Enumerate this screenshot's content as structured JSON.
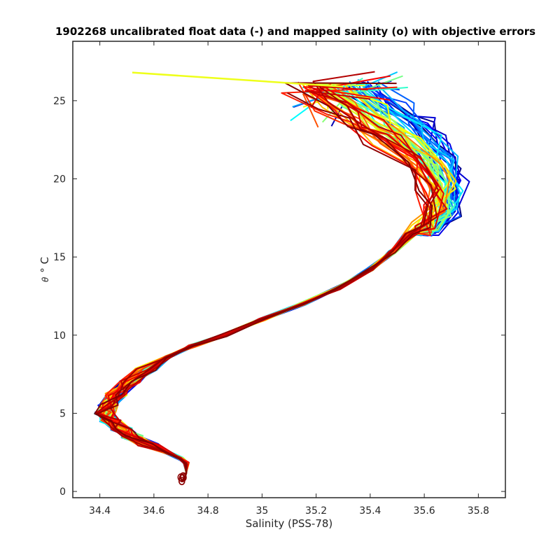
{
  "chart_data": {
    "type": "line",
    "title": "1902268 uncalibrated float data (-) and mapped salinity (o) with objective errors",
    "xlabel": "Salinity (PSS-78)",
    "ylabel_symbol": "θ",
    "ylabel_unit": "° C",
    "xlim": [
      34.3,
      35.9
    ],
    "ylim": [
      -0.4,
      28.8
    ],
    "x_ticks": [
      34.4,
      34.6,
      34.8,
      35,
      35.2,
      35.4,
      35.6,
      35.8
    ],
    "x_tick_labels": [
      "34.4",
      "34.6",
      "34.8",
      "35",
      "35.2",
      "35.4",
      "35.6",
      "35.8"
    ],
    "y_ticks": [
      0,
      5,
      10,
      15,
      20,
      25
    ],
    "y_tick_labels": [
      "0",
      "5",
      "10",
      "15",
      "20",
      "25"
    ],
    "grid": false,
    "colormap": [
      "#00007f",
      "#0000ff",
      "#007fff",
      "#00ffff",
      "#7fff7f",
      "#ffff00",
      "#ff7f00",
      "#ff0000",
      "#7f0000"
    ],
    "profile_count": 60,
    "deep_segment": [
      [
        34.71,
        0.7
      ],
      [
        34.72,
        1.2
      ],
      [
        34.72,
        1.8
      ],
      [
        34.7,
        2.1
      ],
      [
        34.65,
        2.5
      ],
      [
        34.58,
        3.0
      ],
      [
        34.52,
        3.5
      ],
      [
        34.48,
        4.0
      ],
      [
        34.44,
        4.5
      ],
      [
        34.42,
        5.0
      ],
      [
        34.43,
        5.5
      ],
      [
        34.46,
        6.2
      ],
      [
        34.51,
        7.0
      ],
      [
        34.57,
        7.8
      ],
      [
        34.65,
        8.6
      ],
      [
        34.74,
        9.3
      ],
      [
        34.86,
        10.0
      ],
      [
        35.0,
        11.0
      ],
      [
        35.15,
        12.0
      ],
      [
        35.28,
        13.0
      ],
      [
        35.4,
        14.2
      ],
      [
        35.48,
        15.3
      ],
      [
        35.55,
        16.5
      ]
    ],
    "upper_envelope": {
      "fresh_end": [
        [
          35.58,
          16.8
        ],
        [
          35.62,
          18.0
        ],
        [
          35.6,
          19.5
        ],
        [
          35.53,
          21.0
        ],
        [
          35.4,
          22.5
        ],
        [
          35.28,
          23.5
        ],
        [
          35.2,
          24.5
        ],
        [
          35.1,
          25.8
        ]
      ],
      "salty_end": [
        [
          35.62,
          16.8
        ],
        [
          35.7,
          18.0
        ],
        [
          35.73,
          19.5
        ],
        [
          35.7,
          21.0
        ],
        [
          35.65,
          22.5
        ],
        [
          35.6,
          23.5
        ],
        [
          35.52,
          24.5
        ],
        [
          35.4,
          25.8
        ]
      ]
    },
    "outlier_line": [
      [
        34.52,
        26.8
      ],
      [
        35.3,
        25.9
      ]
    ]
  }
}
